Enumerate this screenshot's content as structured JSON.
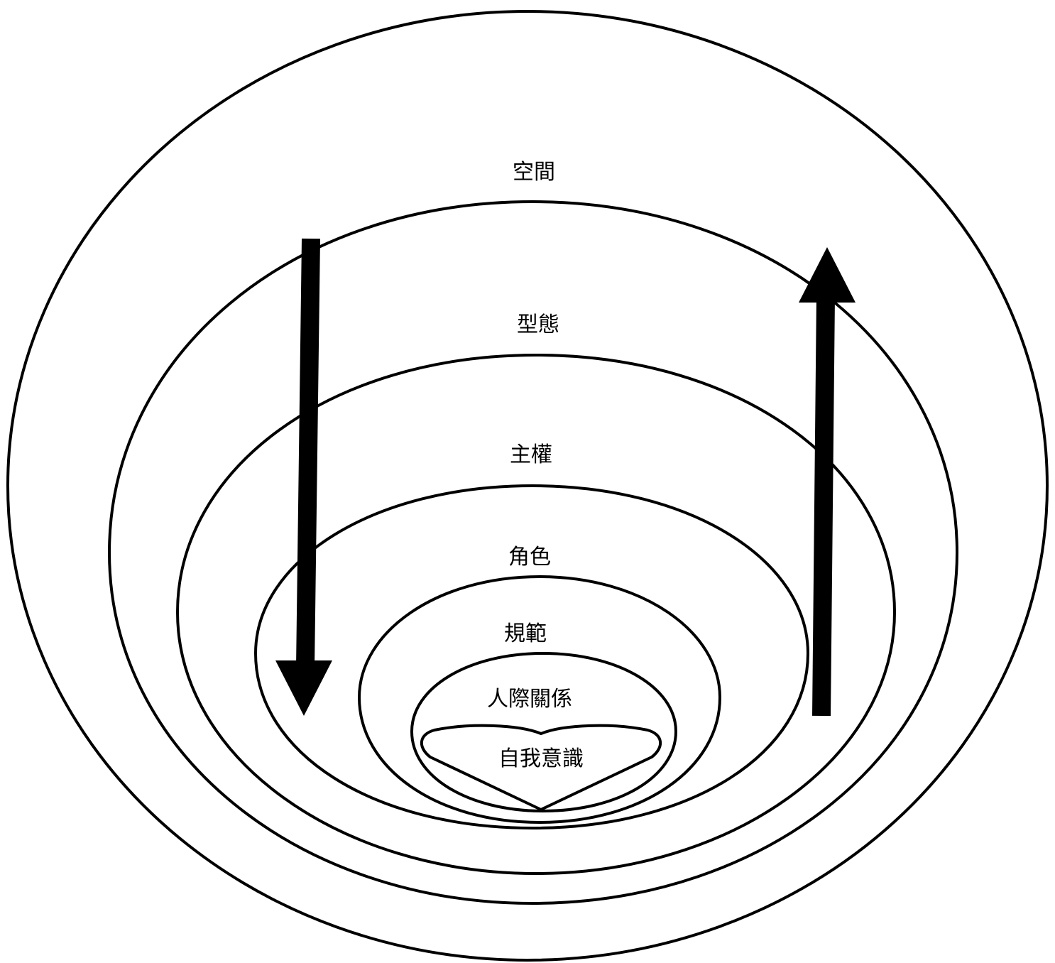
{
  "layers": [
    {
      "id": "space",
      "label": "空間"
    },
    {
      "id": "form",
      "label": "型態"
    },
    {
      "id": "sovereignty",
      "label": "主權"
    },
    {
      "id": "role",
      "label": "角色"
    },
    {
      "id": "norms",
      "label": "規範"
    },
    {
      "id": "interpersonal",
      "label": "人際關係"
    },
    {
      "id": "self",
      "label": "自我意識"
    }
  ],
  "arrows": [
    {
      "id": "outer-to-inner",
      "direction": "down"
    },
    {
      "id": "inner-to-outer",
      "direction": "up"
    }
  ],
  "colors": {
    "stroke": "#000000",
    "background": "#ffffff"
  }
}
